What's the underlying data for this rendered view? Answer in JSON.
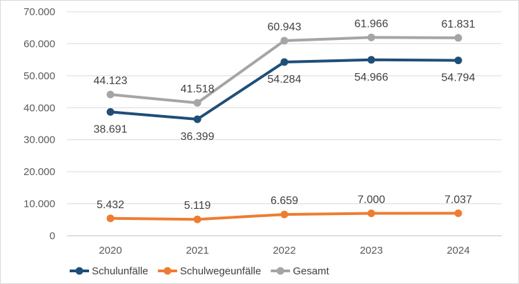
{
  "chart_data": {
    "type": "line",
    "title": "",
    "xlabel": "",
    "ylabel": "",
    "categories": [
      "2020",
      "2021",
      "2022",
      "2023",
      "2024"
    ],
    "ylim": [
      0,
      70000
    ],
    "yticks": [
      0,
      10000,
      20000,
      30000,
      40000,
      50000,
      60000,
      70000
    ],
    "ytick_labels": [
      "0",
      "10.000",
      "20.000",
      "30.000",
      "40.000",
      "50.000",
      "60.000",
      "70.000"
    ],
    "grid": true,
    "legend_position": "bottom-left",
    "series": [
      {
        "name": "Schulunfälle",
        "color": "#1f4e79",
        "values": [
          38691,
          36399,
          54284,
          54966,
          54794
        ],
        "labels": [
          "38.691",
          "36.399",
          "54.284",
          "54.966",
          "54.794"
        ],
        "label_position": [
          "below",
          "below",
          "below",
          "below",
          "below"
        ]
      },
      {
        "name": "Schulwegeunfälle",
        "color": "#ed7d31",
        "values": [
          5432,
          5119,
          6659,
          7000,
          7037
        ],
        "labels": [
          "5.432",
          "5.119",
          "6.659",
          "7.000",
          "7.037"
        ],
        "label_position": [
          "above",
          "above",
          "above",
          "above",
          "above"
        ]
      },
      {
        "name": "Gesamt",
        "color": "#a5a5a5",
        "values": [
          44123,
          41518,
          60943,
          61966,
          61831
        ],
        "labels": [
          "44.123",
          "41.518",
          "60.943",
          "61.966",
          "61.831"
        ],
        "label_position": [
          "above",
          "above",
          "above",
          "above",
          "above"
        ]
      }
    ]
  }
}
